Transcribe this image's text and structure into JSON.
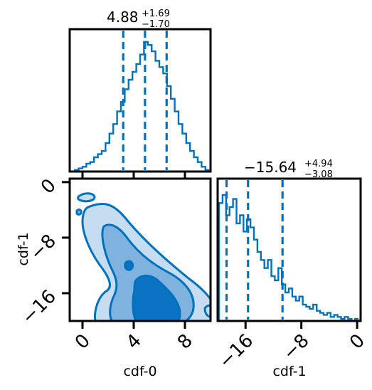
{
  "colors": {
    "line": "#0072bd",
    "fill_outer": "#c6ddf1",
    "fill_mid": "#7fb2df",
    "fill_inner": "#0a73c2",
    "axis": "#000000"
  },
  "chart_data": [
    {
      "type": "histogram",
      "panel": "top-left",
      "parameter": "cdf-0",
      "title": {
        "median": "4.88",
        "upper": "+1.69",
        "lower": "−1.70"
      },
      "quantiles": [
        3.18,
        4.88,
        6.57
      ],
      "xlim": [
        -1,
        10
      ],
      "bins_x": [
        -0.6,
        -0.3,
        0.0,
        0.3,
        0.6,
        0.9,
        1.2,
        1.5,
        1.8,
        2.1,
        2.4,
        2.7,
        3.0,
        3.3,
        3.6,
        3.9,
        4.2,
        4.5,
        4.8,
        5.1,
        5.4,
        5.7,
        6.0,
        6.3,
        6.6,
        6.9,
        7.2,
        7.5,
        7.8,
        8.1,
        8.4,
        8.7,
        9.0,
        9.3,
        9.6,
        9.9
      ],
      "counts": [
        1,
        2,
        3,
        5,
        6,
        9,
        11,
        13,
        18,
        24,
        30,
        38,
        44,
        52,
        58,
        63,
        68,
        74,
        82,
        80,
        76,
        70,
        66,
        62,
        54,
        46,
        38,
        30,
        24,
        18,
        13,
        9,
        6,
        3,
        1
      ],
      "ylim": [
        0,
        90
      ]
    },
    {
      "type": "contour",
      "panel": "bottom-left",
      "x_param": "cdf-0",
      "y_param": "cdf-1",
      "xlabel": "cdf-0",
      "ylabel": "cdf-1",
      "xlim": [
        -1,
        10
      ],
      "ylim": [
        -20,
        0.5
      ],
      "xticks": [
        0,
        4,
        8
      ],
      "yticks": [
        0,
        -8,
        -16
      ],
      "xtick_labels": [
        "0",
        "4",
        "8"
      ],
      "ytick_labels": [
        "0",
        "−8",
        "−16"
      ],
      "levels": [
        "outer",
        "mid",
        "inner"
      ]
    },
    {
      "type": "histogram",
      "panel": "bottom-right",
      "parameter": "cdf-1",
      "xlabel": "cdf-1",
      "title": {
        "median": "−15.64",
        "upper": "+4.94",
        "lower": "−3.08"
      },
      "quantiles": [
        -18.72,
        -15.64,
        -10.7
      ],
      "xlim": [
        -20,
        0.5
      ],
      "xticks": [
        -16,
        -8,
        0
      ],
      "xtick_labels": [
        "−16",
        "−8",
        "0"
      ],
      "bins_x": [
        -19.8,
        -19.3,
        -18.8,
        -18.3,
        -17.8,
        -17.3,
        -16.8,
        -16.3,
        -15.8,
        -15.3,
        -14.8,
        -14.3,
        -13.8,
        -13.3,
        -12.8,
        -12.3,
        -11.8,
        -11.3,
        -10.8,
        -10.3,
        -9.8,
        -9.3,
        -8.8,
        -8.3,
        -7.8,
        -7.3,
        -6.8,
        -6.3,
        -5.8,
        -5.3,
        -4.8,
        -4.3,
        -3.8,
        -3.3,
        -2.8,
        -2.3,
        -1.8,
        -1.3,
        -0.8,
        -0.3
      ],
      "counts": [
        58,
        62,
        52,
        56,
        60,
        48,
        52,
        44,
        50,
        46,
        40,
        34,
        30,
        26,
        30,
        22,
        20,
        26,
        18,
        14,
        16,
        12,
        10,
        12,
        8,
        7,
        6,
        8,
        5,
        4,
        3,
        4,
        2,
        3,
        2,
        1,
        2,
        1,
        0,
        1
      ],
      "ylim": [
        0,
        70
      ]
    }
  ]
}
